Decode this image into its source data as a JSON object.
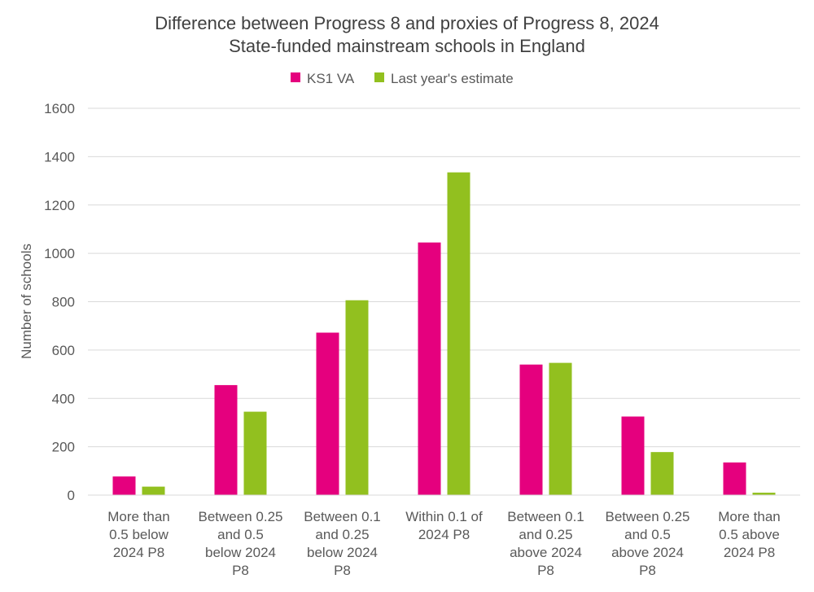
{
  "chart_data": {
    "type": "bar",
    "title": "Difference between Progress 8 and proxies of Progress 8, 2024",
    "subtitle": "State-funded mainstream schools in England",
    "xlabel": "",
    "ylabel": "Number of schools",
    "ylim": [
      0,
      1600
    ],
    "yticks": [
      0,
      200,
      400,
      600,
      800,
      1000,
      1200,
      1400,
      1600
    ],
    "grid": true,
    "legend_position": "top",
    "categories": [
      [
        "More than",
        "0.5 below",
        "2024 P8"
      ],
      [
        "Between 0.25",
        "and 0.5",
        "below 2024",
        "P8"
      ],
      [
        "Between 0.1",
        "and 0.25",
        "below 2024",
        "P8"
      ],
      [
        "Within 0.1 of",
        "2024 P8"
      ],
      [
        "Between 0.1",
        "and 0.25",
        "above 2024",
        "P8"
      ],
      [
        "Between 0.25",
        "and 0.5",
        "above 2024",
        "P8"
      ],
      [
        "More than",
        "0.5 above",
        "2024 P8"
      ]
    ],
    "series": [
      {
        "name": "KS1 VA",
        "color": "#E5007E",
        "values": [
          77,
          455,
          672,
          1045,
          540,
          325,
          135
        ]
      },
      {
        "name": "Last year's estimate",
        "color": "#92C01F",
        "values": [
          35,
          345,
          806,
          1335,
          547,
          178,
          10
        ]
      }
    ]
  }
}
